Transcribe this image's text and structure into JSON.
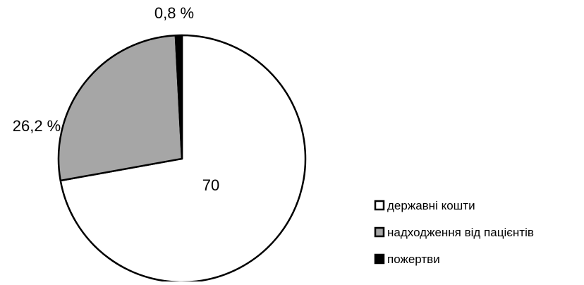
{
  "chart_data": {
    "type": "pie",
    "slices": [
      {
        "name": "державні кошти",
        "value": 70,
        "label": "70",
        "color": "#ffffff"
      },
      {
        "name": "надходження від пацієнтів",
        "value": 26.2,
        "label": "26,2 %",
        "color": "#a6a6a6"
      },
      {
        "name": "пожертви",
        "value": 0.8,
        "label": "0,8 %",
        "color": "#000000"
      }
    ],
    "start": "12 o'clock",
    "direction": "clockwise",
    "legend_position": "bottom-right",
    "outline_color": "#000000",
    "legend_swatch_outline": "#000000"
  }
}
